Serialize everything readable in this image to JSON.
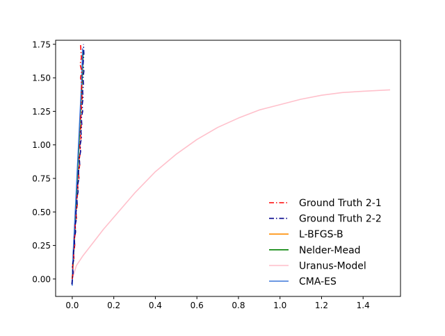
{
  "chart_data": {
    "type": "line",
    "title": "",
    "xlabel": "",
    "ylabel": "",
    "xlim": [
      -0.08,
      1.58
    ],
    "ylim": [
      -0.13,
      1.78
    ],
    "xticks": [
      0.0,
      0.2,
      0.4,
      0.6,
      0.8,
      1.0,
      1.2,
      1.4
    ],
    "xtick_labels": [
      "0.0",
      "0.2",
      "0.4",
      "0.6",
      "0.8",
      "1.0",
      "1.2",
      "1.4"
    ],
    "yticks": [
      0.0,
      0.25,
      0.5,
      0.75,
      1.0,
      1.25,
      1.5,
      1.75
    ],
    "ytick_labels": [
      "0.00",
      "0.25",
      "0.50",
      "0.75",
      "1.00",
      "1.25",
      "1.50",
      "1.75"
    ],
    "grid": false,
    "legend_location": "lower-right",
    "series": [
      {
        "name": "Ground Truth 2-1",
        "color": "#ff0000",
        "style": "dashdot",
        "x": [
          0.0,
          0.004,
          0.002,
          0.008,
          0.006,
          0.012,
          0.01,
          0.016,
          0.014,
          0.02,
          0.018,
          0.024,
          0.022,
          0.028,
          0.026,
          0.032,
          0.03,
          0.036,
          0.034,
          0.04,
          0.036,
          0.042,
          0.038,
          0.044,
          0.04,
          0.046,
          0.042,
          0.048,
          0.044,
          0.046,
          0.04,
          0.046,
          0.038,
          0.044,
          0.04
        ],
        "y": [
          0.0,
          0.05,
          0.1,
          0.15,
          0.2,
          0.25,
          0.3,
          0.35,
          0.4,
          0.45,
          0.5,
          0.55,
          0.6,
          0.65,
          0.7,
          0.75,
          0.8,
          0.85,
          0.9,
          0.95,
          1.0,
          1.05,
          1.1,
          1.15,
          1.2,
          1.25,
          1.3,
          1.35,
          1.4,
          1.45,
          1.5,
          1.55,
          1.6,
          1.65,
          1.75
        ]
      },
      {
        "name": "Ground Truth 2-2",
        "color": "#00008b",
        "style": "dashdot",
        "x": [
          -0.002,
          0.004,
          0.0,
          0.008,
          0.006,
          0.012,
          0.01,
          0.016,
          0.014,
          0.02,
          0.018,
          0.024,
          0.022,
          0.028,
          0.026,
          0.032,
          0.03,
          0.036,
          0.034,
          0.04,
          0.038,
          0.044,
          0.042,
          0.046,
          0.044,
          0.05,
          0.048,
          0.052,
          0.05,
          0.054,
          0.052,
          0.056,
          0.052,
          0.056,
          0.054
        ],
        "y": [
          -0.04,
          0.05,
          0.1,
          0.15,
          0.2,
          0.25,
          0.3,
          0.35,
          0.4,
          0.45,
          0.5,
          0.55,
          0.6,
          0.65,
          0.7,
          0.75,
          0.8,
          0.85,
          0.9,
          0.95,
          1.0,
          1.05,
          1.1,
          1.15,
          1.2,
          1.25,
          1.3,
          1.35,
          1.4,
          1.45,
          1.5,
          1.55,
          1.6,
          1.68,
          1.75
        ]
      },
      {
        "name": "L-BFGS-B",
        "color": "#ff8c00",
        "style": "solid",
        "x": [
          0.0,
          0.006,
          0.012,
          0.018,
          0.024,
          0.03,
          0.036,
          0.042,
          0.048,
          0.052
        ],
        "y": [
          0.0,
          0.18,
          0.36,
          0.55,
          0.74,
          0.93,
          1.12,
          1.31,
          1.5,
          1.7
        ]
      },
      {
        "name": "Nelder-Mead",
        "color": "#008000",
        "style": "solid",
        "x": [
          0.0,
          0.006,
          0.012,
          0.018,
          0.024,
          0.03,
          0.036,
          0.042,
          0.048,
          0.052
        ],
        "y": [
          0.0,
          0.18,
          0.36,
          0.55,
          0.74,
          0.93,
          1.12,
          1.31,
          1.5,
          1.7
        ]
      },
      {
        "name": "Uranus-Model",
        "color": "#ffc0cb",
        "style": "solid",
        "x": [
          0.0,
          0.02,
          0.05,
          0.1,
          0.15,
          0.2,
          0.3,
          0.4,
          0.5,
          0.6,
          0.7,
          0.8,
          0.9,
          1.0,
          1.1,
          1.2,
          1.3,
          1.4,
          1.53
        ],
        "y": [
          0.0,
          0.1,
          0.17,
          0.27,
          0.37,
          0.46,
          0.64,
          0.8,
          0.93,
          1.04,
          1.13,
          1.2,
          1.26,
          1.3,
          1.34,
          1.37,
          1.39,
          1.4,
          1.41
        ]
      },
      {
        "name": "CMA-ES",
        "color": "#3a75d9",
        "style": "solid",
        "x": [
          0.0,
          0.004,
          0.01,
          0.016,
          0.022,
          0.028,
          0.034,
          0.04,
          0.046,
          0.05
        ],
        "y": [
          -0.05,
          0.18,
          0.36,
          0.55,
          0.74,
          0.93,
          1.12,
          1.31,
          1.5,
          1.72
        ]
      }
    ]
  }
}
